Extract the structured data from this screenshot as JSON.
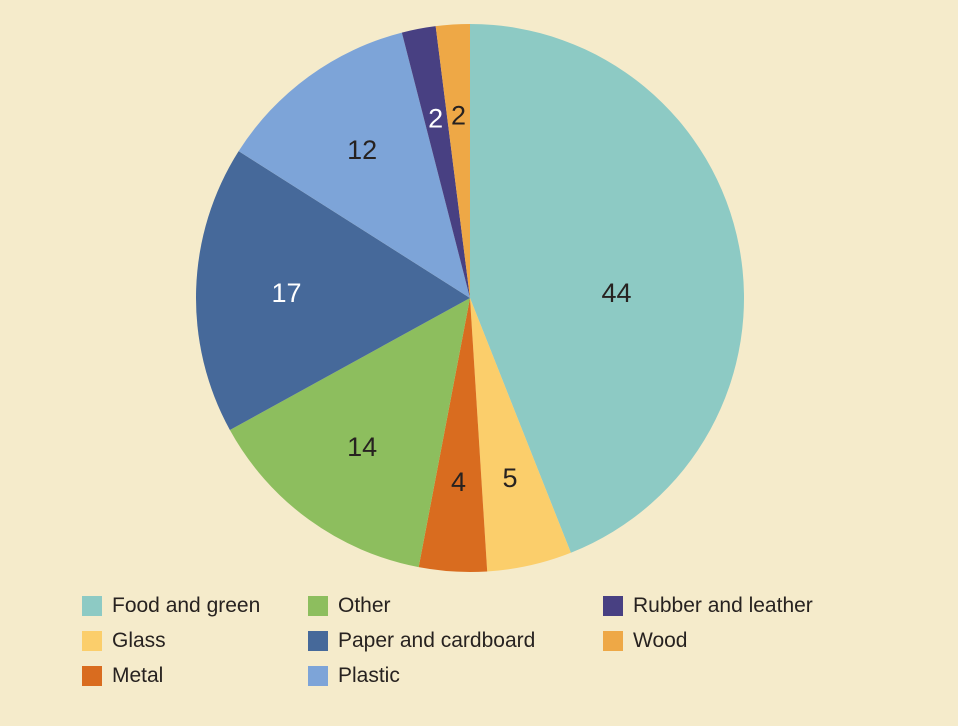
{
  "page": {
    "background_color": "#F5EBCB",
    "text_color": "#272220"
  },
  "chart_data": {
    "type": "pie",
    "title": "",
    "direction": "clockwise",
    "start_angle_deg": 0,
    "total": 100,
    "labels_shown": "values",
    "legend_position": "bottom",
    "slices": [
      {
        "label": "Food and green",
        "value": 44,
        "color": "#8DCAC4",
        "value_label_color": "#272220"
      },
      {
        "label": "Glass",
        "value": 5,
        "color": "#FBCE6B",
        "value_label_color": "#272220"
      },
      {
        "label": "Metal",
        "value": 4,
        "color": "#D96C1F",
        "value_label_color": "#272220"
      },
      {
        "label": "Other",
        "value": 14,
        "color": "#8DBE5E",
        "value_label_color": "#272220"
      },
      {
        "label": "Paper and cardboard",
        "value": 17,
        "color": "#46699A",
        "value_label_color": "#FFFFFF"
      },
      {
        "label": "Plastic",
        "value": 12,
        "color": "#7DA4D8",
        "value_label_color": "#272220"
      },
      {
        "label": "Rubber and leather",
        "value": 2,
        "color": "#484082",
        "value_label_color": "#FFFFFF"
      },
      {
        "label": "Wood",
        "value": 2,
        "color": "#EEA846",
        "value_label_color": "#272220"
      }
    ],
    "legend_order_row_major": [
      "Food and green",
      "Other",
      "Rubber and leather",
      "Glass",
      "Paper and cardboard",
      "Wood",
      "Metal",
      "Plastic"
    ]
  }
}
